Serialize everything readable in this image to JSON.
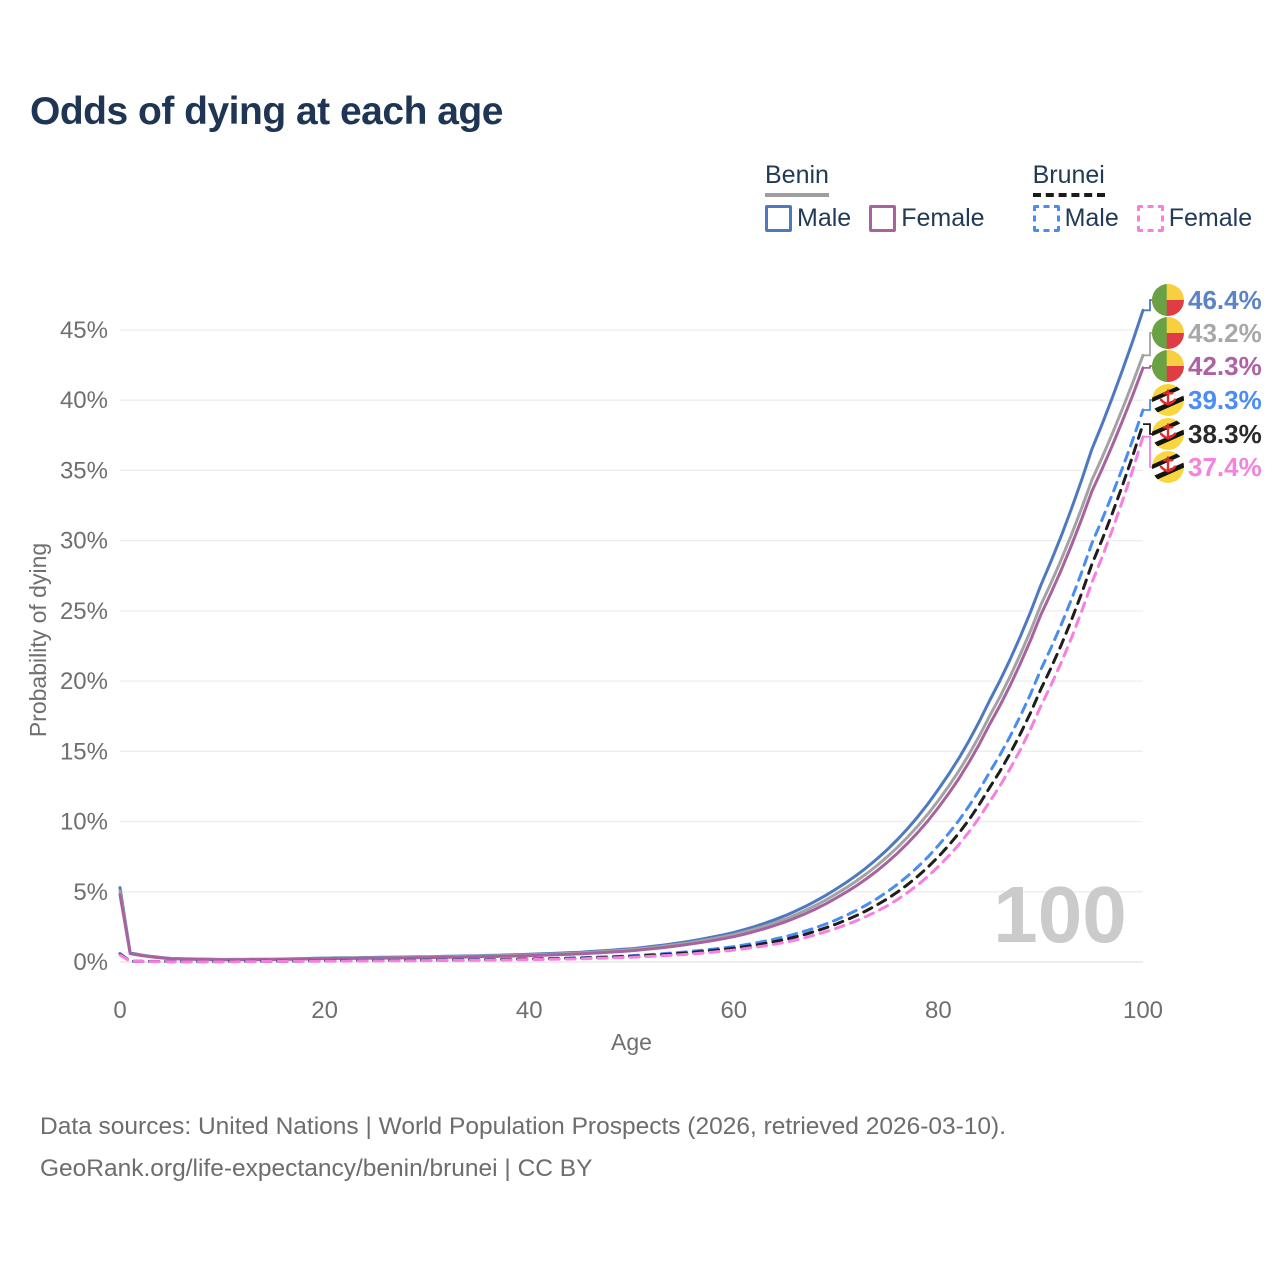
{
  "title": "Odds of dying at each age",
  "watermark": "100",
  "legend": {
    "groups": [
      {
        "country": "Benin",
        "underline_style": "solid",
        "underline_color": "#9e9e9e",
        "items": [
          {
            "label": "Male",
            "color": "#4e79c0",
            "dashed": false
          },
          {
            "label": "Female",
            "color": "#a8639f",
            "dashed": false
          }
        ]
      },
      {
        "country": "Brunei",
        "underline_style": "dashed",
        "underline_color": "#1b1b1b",
        "items": [
          {
            "label": "Male",
            "color": "#4a8cf0",
            "dashed": true
          },
          {
            "label": "Female",
            "color": "#f77fe0",
            "dashed": true
          }
        ]
      }
    ]
  },
  "footer": {
    "line1": "Data sources: United Nations | World Population Prospects (2026, retrieved 2026-03-10).",
    "line2": "GeoRank.org/life-expectancy/benin/brunei | CC BY"
  },
  "chart_data": {
    "type": "line",
    "title": "Odds of dying at each age",
    "xlabel": "Age",
    "ylabel": "Probability of dying",
    "xlim": [
      0,
      100
    ],
    "ylim": [
      0,
      47.5
    ],
    "x_ticks": [
      0,
      20,
      40,
      60,
      80,
      100
    ],
    "y_ticks": [
      0,
      5,
      10,
      15,
      20,
      25,
      30,
      35,
      40,
      45
    ],
    "grid": true,
    "legend_position": "top-right",
    "x": [
      0,
      1,
      5,
      10,
      15,
      20,
      25,
      30,
      35,
      40,
      45,
      50,
      55,
      60,
      65,
      70,
      75,
      80,
      85,
      90,
      95,
      100
    ],
    "series": [
      {
        "id": "benin-male",
        "name": "Benin Male",
        "country": "Benin",
        "sex": "Male",
        "color": "#4e79c0",
        "label_color": "#5b83c7",
        "dashed": false,
        "flag": "benin",
        "end_label": "46.4%",
        "values": [
          5.3,
          0.65,
          0.25,
          0.18,
          0.2,
          0.28,
          0.33,
          0.38,
          0.45,
          0.55,
          0.7,
          0.95,
          1.4,
          2.1,
          3.3,
          5.2,
          8.0,
          12.3,
          18.6,
          26.8,
          36.5,
          46.4
        ]
      },
      {
        "id": "benin-both",
        "name": "Benin Both sexes",
        "country": "Benin",
        "sex": "Both",
        "color": "#a3a3a3",
        "label_color": "#a8a8a8",
        "dashed": false,
        "flag": "benin",
        "end_label": "43.2%",
        "values": [
          5.05,
          0.62,
          0.24,
          0.17,
          0.19,
          0.26,
          0.3,
          0.35,
          0.42,
          0.5,
          0.64,
          0.88,
          1.3,
          1.95,
          3.05,
          4.85,
          7.5,
          11.5,
          17.5,
          25.4,
          34.3,
          43.2
        ]
      },
      {
        "id": "benin-female",
        "name": "Benin Female",
        "country": "Benin",
        "sex": "Female",
        "color": "#a8639f",
        "label_color": "#ad62a3",
        "dashed": false,
        "flag": "benin",
        "end_label": "42.3%",
        "values": [
          4.8,
          0.6,
          0.23,
          0.16,
          0.18,
          0.24,
          0.27,
          0.31,
          0.37,
          0.45,
          0.58,
          0.8,
          1.2,
          1.8,
          2.85,
          4.55,
          7.1,
          11.0,
          16.9,
          24.7,
          33.5,
          42.3
        ]
      },
      {
        "id": "brunei-male",
        "name": "Brunei Male",
        "country": "Brunei",
        "sex": "Male",
        "color": "#4a8cf0",
        "label_color": "#4b8cf5",
        "dashed": true,
        "flag": "brunei",
        "end_label": "39.3%",
        "values": [
          0.6,
          0.06,
          0.03,
          0.03,
          0.06,
          0.1,
          0.12,
          0.14,
          0.17,
          0.22,
          0.3,
          0.45,
          0.7,
          1.1,
          1.8,
          3.0,
          5.0,
          8.3,
          13.5,
          20.8,
          29.8,
          39.3
        ]
      },
      {
        "id": "brunei-both",
        "name": "Brunei Both sexes",
        "country": "Brunei",
        "sex": "Both",
        "color": "#1e1e1e",
        "label_color": "#2a2a2a",
        "dashed": true,
        "flag": "brunei",
        "end_label": "38.3%",
        "values": [
          0.55,
          0.05,
          0.03,
          0.03,
          0.05,
          0.08,
          0.1,
          0.12,
          0.15,
          0.2,
          0.27,
          0.4,
          0.62,
          0.98,
          1.6,
          2.7,
          4.5,
          7.5,
          12.4,
          19.4,
          28.3,
          38.3
        ]
      },
      {
        "id": "brunei-female",
        "name": "Brunei Female",
        "country": "Brunei",
        "sex": "Female",
        "color": "#f77fe0",
        "label_color": "#f583dd",
        "dashed": true,
        "flag": "brunei",
        "end_label": "37.4%",
        "values": [
          0.5,
          0.05,
          0.02,
          0.02,
          0.04,
          0.06,
          0.08,
          0.1,
          0.13,
          0.17,
          0.23,
          0.34,
          0.53,
          0.85,
          1.4,
          2.4,
          4.0,
          6.8,
          11.4,
          18.2,
          27.0,
          37.4
        ]
      }
    ]
  }
}
